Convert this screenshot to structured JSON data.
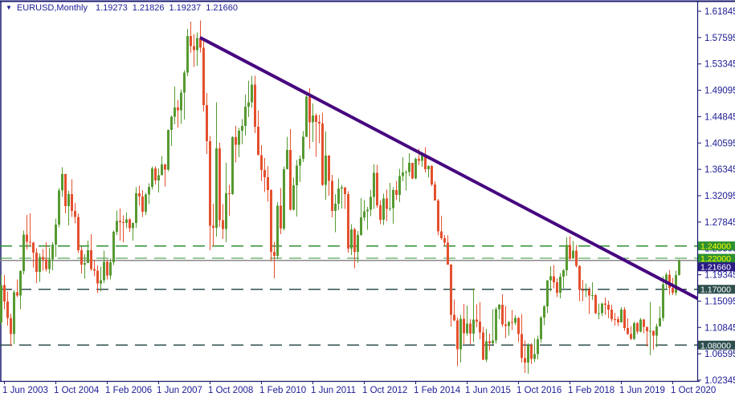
{
  "title": {
    "symbol": "EURUSD,Monthly",
    "open": "1.19273",
    "high": "1.21826",
    "low": "1.19237",
    "close": "1.21660"
  },
  "colors": {
    "background": "#FFFFFF",
    "border_navy": "#191970",
    "text_navy": "#1C1C96",
    "candle_up": "#569A31",
    "candle_down": "#E4502E",
    "trendline": "#46077F",
    "level_green": "#2E9032",
    "level_dark": "#2F4F4F",
    "bid_line": "#8C8C8C",
    "bid_box": "#2B1C86",
    "label_yellow": "#FFFF00",
    "label_white": "#FFFFFF"
  },
  "chart_data": {
    "type": "candlestick",
    "symbol": "EURUSD",
    "timeframe": "Monthly",
    "current_bar": {
      "open": 1.19273,
      "high": 1.21826,
      "low": 1.19237,
      "close": 1.2166
    },
    "y_axis_labels": [
      "1.61845",
      "1.57595",
      "1.53345",
      "1.49095",
      "1.44845",
      "1.40595",
      "1.36345",
      "1.32095",
      "1.27845",
      "1.23595",
      "1.19345",
      "1.15095",
      "1.10845",
      "1.06595",
      "1.02345"
    ],
    "ylim": [
      1.02345,
      1.61845
    ],
    "x_axis_labels": [
      {
        "text": "1 Jun 2003",
        "month": "2003-06"
      },
      {
        "text": "1 Oct 2004",
        "month": "2004-10"
      },
      {
        "text": "1 Feb 2006",
        "month": "2006-02"
      },
      {
        "text": "1 Jun 2007",
        "month": "2007-06"
      },
      {
        "text": "1 Oct 2008",
        "month": "2008-10"
      },
      {
        "text": "1 Feb 2010",
        "month": "2010-02"
      },
      {
        "text": "1 Jun 2011",
        "month": "2011-06"
      },
      {
        "text": "1 Oct 2012",
        "month": "2012-10"
      },
      {
        "text": "1 Feb 2014",
        "month": "2014-02"
      },
      {
        "text": "1 Jun 2015",
        "month": "2015-06"
      },
      {
        "text": "1 Oct 2016",
        "month": "2016-10"
      },
      {
        "text": "1 Feb 2018",
        "month": "2018-02"
      },
      {
        "text": "1 Jun 2019",
        "month": "2019-06"
      },
      {
        "text": "1 Oct 2020",
        "month": "2020-10"
      }
    ],
    "start_month": "2003-01",
    "first_open": 1.0492,
    "bars_hlc": [
      [
        1.0865,
        1.0461,
        1.0739
      ],
      [
        1.0897,
        1.0663,
        1.0779
      ],
      [
        1.1062,
        1.0502,
        1.09
      ],
      [
        1.1193,
        1.0622,
        1.1168
      ],
      [
        1.1933,
        1.1122,
        1.1766
      ],
      [
        1.1931,
        1.1378,
        1.1502
      ],
      [
        1.1662,
        1.1113,
        1.1237
      ],
      [
        1.131,
        1.0783,
        1.098
      ],
      [
        1.1685,
        1.0819,
        1.165
      ],
      [
        1.1861,
        1.1571,
        1.1599
      ],
      [
        1.2005,
        1.1377,
        1.1995
      ],
      [
        1.2649,
        1.1945,
        1.2579
      ],
      [
        1.2898,
        1.234,
        1.2463
      ],
      [
        1.2927,
        1.2385,
        1.2455
      ],
      [
        1.2466,
        1.205,
        1.229
      ],
      [
        1.2361,
        1.1802,
        1.1979
      ],
      [
        1.2278,
        1.1822,
        1.2217
      ],
      [
        1.2348,
        1.1998,
        1.2183
      ],
      [
        1.2462,
        1.1984,
        1.2029
      ],
      [
        1.237,
        1.1956,
        1.2184
      ],
      [
        1.246,
        1.2008,
        1.242
      ],
      [
        1.2843,
        1.2222,
        1.2742
      ],
      [
        1.3335,
        1.27,
        1.3291
      ],
      [
        1.3667,
        1.3193,
        1.3558
      ],
      [
        1.3568,
        1.2924,
        1.304
      ],
      [
        1.3285,
        1.2732,
        1.3238
      ],
      [
        1.3477,
        1.2868,
        1.2962
      ],
      [
        1.3093,
        1.2765,
        1.2868
      ],
      [
        1.2927,
        1.2283,
        1.2329
      ],
      [
        1.239,
        1.1954,
        1.2098
      ],
      [
        1.2264,
        1.1868,
        1.2122
      ],
      [
        1.2486,
        1.2139,
        1.2331
      ],
      [
        1.2591,
        1.1997,
        1.2024
      ],
      [
        1.2175,
        1.1912,
        1.1997
      ],
      [
        1.2085,
        1.164,
        1.179
      ],
      [
        1.2066,
        1.1665,
        1.1843
      ],
      [
        1.2323,
        1.1801,
        1.2143
      ],
      [
        1.2181,
        1.1857,
        1.1925
      ],
      [
        1.2203,
        1.1861,
        1.2136
      ],
      [
        1.2647,
        1.2093,
        1.2625
      ],
      [
        1.297,
        1.2574,
        1.2802
      ],
      [
        1.3005,
        1.2483,
        1.2784
      ],
      [
        1.289,
        1.2457,
        1.2767
      ],
      [
        1.294,
        1.2686,
        1.2831
      ],
      [
        1.2846,
        1.2625,
        1.2686
      ],
      [
        1.2774,
        1.2484,
        1.2769
      ],
      [
        1.3347,
        1.269,
        1.3247
      ],
      [
        1.3368,
        1.3047,
        1.3198
      ],
      [
        1.3297,
        1.2866,
        1.2954
      ],
      [
        1.3256,
        1.29,
        1.323
      ],
      [
        1.341,
        1.3075,
        1.3354
      ],
      [
        1.3682,
        1.3305,
        1.3651
      ],
      [
        1.3681,
        1.3391,
        1.3453
      ],
      [
        1.3651,
        1.3262,
        1.3542
      ],
      [
        1.3852,
        1.3549,
        1.3713
      ],
      [
        1.3718,
        1.336,
        1.3633
      ],
      [
        1.4278,
        1.3606,
        1.4271
      ],
      [
        1.4503,
        1.4014,
        1.4483
      ],
      [
        1.4967,
        1.4363,
        1.4633
      ],
      [
        1.4758,
        1.4309,
        1.459
      ],
      [
        1.4922,
        1.4365,
        1.487
      ],
      [
        1.5229,
        1.4437,
        1.5195
      ],
      [
        1.5903,
        1.5135,
        1.5785
      ],
      [
        1.6018,
        1.5512,
        1.5622
      ],
      [
        1.5814,
        1.5284,
        1.5554
      ],
      [
        1.5843,
        1.5303,
        1.5748
      ],
      [
        1.6038,
        1.552,
        1.5594
      ],
      [
        1.5698,
        1.4569,
        1.4671
      ],
      [
        1.4866,
        1.3882,
        1.4092
      ],
      [
        1.4175,
        1.233,
        1.2726
      ],
      [
        1.3083,
        1.2387,
        1.2694
      ],
      [
        1.4719,
        1.2553,
        1.3971
      ],
      [
        1.4064,
        1.2706,
        1.2813
      ],
      [
        1.3071,
        1.2513,
        1.2671
      ],
      [
        1.3738,
        1.2457,
        1.3249
      ],
      [
        1.3386,
        1.2886,
        1.3237
      ],
      [
        1.4169,
        1.3224,
        1.4155
      ],
      [
        1.4338,
        1.3748,
        1.4032
      ],
      [
        1.4304,
        1.3833,
        1.4256
      ],
      [
        1.4447,
        1.4045,
        1.4333
      ],
      [
        1.4842,
        1.4177,
        1.4643
      ],
      [
        1.5064,
        1.448,
        1.4715
      ],
      [
        1.5144,
        1.4625,
        1.5004
      ],
      [
        1.5141,
        1.4218,
        1.4325
      ],
      [
        1.458,
        1.3862,
        1.3862
      ],
      [
        1.4025,
        1.3443,
        1.3623
      ],
      [
        1.3818,
        1.3267,
        1.351
      ],
      [
        1.3691,
        1.3114,
        1.3297
      ],
      [
        1.3316,
        1.2151,
        1.2304
      ],
      [
        1.2467,
        1.1876,
        1.2238
      ],
      [
        1.3106,
        1.219,
        1.3049
      ],
      [
        1.3333,
        1.2587,
        1.268
      ],
      [
        1.3684,
        1.2644,
        1.3634
      ],
      [
        1.4158,
        1.3634,
        1.3947
      ],
      [
        1.4281,
        1.2969,
        1.2983
      ],
      [
        1.3499,
        1.2968,
        1.3379
      ],
      [
        1.3786,
        1.2875,
        1.3692
      ],
      [
        1.3856,
        1.3428,
        1.3806
      ],
      [
        1.4249,
        1.3752,
        1.4158
      ],
      [
        1.4882,
        1.4155,
        1.4806
      ],
      [
        1.494,
        1.3968,
        1.4393
      ],
      [
        1.4696,
        1.4073,
        1.4502
      ],
      [
        1.4536,
        1.3837,
        1.4399
      ],
      [
        1.4518,
        1.4055,
        1.4372
      ],
      [
        1.4549,
        1.3363,
        1.3387
      ],
      [
        1.4247,
        1.3146,
        1.3854
      ],
      [
        1.386,
        1.3212,
        1.3446
      ],
      [
        1.3548,
        1.2858,
        1.2961
      ],
      [
        1.3234,
        1.2624,
        1.3083
      ],
      [
        1.3487,
        1.2974,
        1.3325
      ],
      [
        1.3386,
        1.3003,
        1.3343
      ],
      [
        1.3284,
        1.2994,
        1.3238
      ],
      [
        1.3283,
        1.2288,
        1.2359
      ],
      [
        1.2748,
        1.225,
        1.2667
      ],
      [
        1.2693,
        1.2042,
        1.2304
      ],
      [
        1.2638,
        1.2132,
        1.2576
      ],
      [
        1.3172,
        1.256,
        1.286
      ],
      [
        1.3139,
        1.2803,
        1.296
      ],
      [
        1.3028,
        1.2661,
        1.2986
      ],
      [
        1.3308,
        1.288,
        1.3193
      ],
      [
        1.3712,
        1.2998,
        1.358
      ],
      [
        1.371,
        1.3018,
        1.3057
      ],
      [
        1.3134,
        1.275,
        1.2819
      ],
      [
        1.3243,
        1.274,
        1.3167
      ],
      [
        1.3306,
        1.2796,
        1.2996
      ],
      [
        1.3415,
        1.2966,
        1.301
      ],
      [
        1.3345,
        1.2755,
        1.33
      ],
      [
        1.3452,
        1.3138,
        1.3221
      ],
      [
        1.3645,
        1.3105,
        1.3527
      ],
      [
        1.3832,
        1.3441,
        1.3584
      ],
      [
        1.3616,
        1.3295,
        1.3591
      ],
      [
        1.3893,
        1.3524,
        1.3743
      ],
      [
        1.374,
        1.3476,
        1.3486
      ],
      [
        1.3824,
        1.3475,
        1.3802
      ],
      [
        1.3967,
        1.3704,
        1.377
      ],
      [
        1.3906,
        1.3672,
        1.3867
      ],
      [
        1.3993,
        1.3586,
        1.3634
      ],
      [
        1.3699,
        1.3503,
        1.3691
      ],
      [
        1.37,
        1.3366,
        1.339
      ],
      [
        1.3445,
        1.3133,
        1.3132
      ],
      [
        1.316,
        1.257,
        1.2631
      ],
      [
        1.2886,
        1.25,
        1.2524
      ],
      [
        1.2578,
        1.2394,
        1.2452
      ],
      [
        1.257,
        1.2096,
        1.2098
      ],
      [
        1.2109,
        1.1098,
        1.1291
      ],
      [
        1.1534,
        1.1184,
        1.1197
      ],
      [
        1.1243,
        1.0462,
        1.0731
      ],
      [
        1.129,
        1.0519,
        1.1224
      ],
      [
        1.1466,
        1.0819,
        1.099
      ],
      [
        1.1436,
        1.0955,
        1.1147
      ],
      [
        1.1216,
        1.0808,
        1.0984
      ],
      [
        1.1714,
        1.0848,
        1.1211
      ],
      [
        1.146,
        1.1087,
        1.1177
      ],
      [
        1.1495,
        1.0897,
        1.1006
      ],
      [
        1.1095,
        1.0557,
        1.0565
      ],
      [
        1.106,
        1.0524,
        1.0862
      ],
      [
        1.0985,
        1.0711,
        1.0832
      ],
      [
        1.1376,
        1.081,
        1.0873
      ],
      [
        1.1412,
        1.0826,
        1.138
      ],
      [
        1.1465,
        1.1217,
        1.1451
      ],
      [
        1.1616,
        1.1097,
        1.1131
      ],
      [
        1.1428,
        1.0912,
        1.1106
      ],
      [
        1.1186,
        1.0952,
        1.1174
      ],
      [
        1.1366,
        1.1046,
        1.1158
      ],
      [
        1.128,
        1.1122,
        1.1238
      ],
      [
        1.125,
        1.0851,
        1.0981
      ],
      [
        1.13,
        1.0518,
        1.0589
      ],
      [
        1.0873,
        1.0352,
        1.0517
      ],
      [
        1.0829,
        1.0341,
        1.0798
      ],
      [
        1.0828,
        1.0494,
        1.0576
      ],
      [
        1.0906,
        1.0525,
        1.0652
      ],
      [
        1.0951,
        1.057,
        1.0895
      ],
      [
        1.1268,
        1.0839,
        1.1244
      ],
      [
        1.1445,
        1.1118,
        1.1426
      ],
      [
        1.1845,
        1.1312,
        1.1842
      ],
      [
        1.207,
        1.1662,
        1.191
      ],
      [
        1.2092,
        1.1717,
        1.1814
      ],
      [
        1.188,
        1.1574,
        1.1646
      ],
      [
        1.1961,
        1.1553,
        1.1904
      ],
      [
        1.2028,
        1.1718,
        1.2005
      ],
      [
        1.2537,
        1.1916,
        1.2415
      ],
      [
        1.2556,
        1.2155,
        1.2193
      ],
      [
        1.2476,
        1.224,
        1.2324
      ],
      [
        1.2414,
        1.2055,
        1.2078
      ],
      [
        1.2085,
        1.151,
        1.1692
      ],
      [
        1.1852,
        1.1508,
        1.1684
      ],
      [
        1.1791,
        1.1575,
        1.1691
      ],
      [
        1.1733,
        1.1301,
        1.1601
      ],
      [
        1.1815,
        1.1526,
        1.1604
      ],
      [
        1.1625,
        1.1302,
        1.1316
      ],
      [
        1.1472,
        1.1216,
        1.1317
      ],
      [
        1.1485,
        1.127,
        1.1467
      ],
      [
        1.157,
        1.1289,
        1.1448
      ],
      [
        1.1514,
        1.1234,
        1.1373
      ],
      [
        1.1448,
        1.1176,
        1.1218
      ],
      [
        1.1324,
        1.1111,
        1.1215
      ],
      [
        1.1264,
        1.1107,
        1.1168
      ],
      [
        1.1412,
        1.1181,
        1.1373
      ],
      [
        1.1412,
        1.1027,
        1.1078
      ],
      [
        1.123,
        1.0963,
        1.0981
      ],
      [
        1.111,
        1.0879,
        1.0899
      ],
      [
        1.118,
        1.088,
        1.1152
      ],
      [
        1.1175,
        1.0981,
        1.1018
      ],
      [
        1.1239,
        1.1002,
        1.1212
      ],
      [
        1.1225,
        1.0992,
        1.1093
      ],
      [
        1.1096,
        1.0778,
        1.1026
      ],
      [
        1.1495,
        1.0636,
        1.1031
      ],
      [
        1.1039,
        1.0727,
        1.0955
      ],
      [
        1.1145,
        1.0766,
        1.1101
      ],
      [
        1.1422,
        1.1101,
        1.1234
      ],
      [
        1.1909,
        1.1185,
        1.1778
      ],
      [
        1.1966,
        1.1696,
        1.1935
      ],
      [
        1.2011,
        1.1612,
        1.172
      ],
      [
        1.1881,
        1.1603,
        1.1647
      ],
      [
        1.2003,
        1.1602,
        1.1927
      ],
      [
        1.21826,
        1.19237,
        1.2166
      ]
    ],
    "levels": [
      {
        "price": 1.24,
        "label": "1.24000",
        "style": "dashed",
        "line_color": "#2E9032",
        "box_color": "#2E9032",
        "text_color": "#FFFF00"
      },
      {
        "price": 1.22,
        "label": "1.22000",
        "style": "dashed",
        "line_color": "#2E9032",
        "box_color": "#2E9032",
        "text_color": "#FFFF00"
      },
      {
        "price": 1.17,
        "label": "1.17000",
        "style": "dashed",
        "line_color": "#2F4F4F",
        "box_color": "#2F4F4F",
        "text_color": "#FFFFFF"
      },
      {
        "price": 1.08,
        "label": "1.08000",
        "style": "dashed",
        "line_color": "#2F4F4F",
        "box_color": "#2F4F4F",
        "text_color": "#FFFFFF"
      }
    ],
    "bid": {
      "price": 1.2166,
      "label": "1.21660"
    },
    "trendline": {
      "from": {
        "month": "2008-07",
        "price": 1.576
      },
      "to": {
        "month": "2021-07",
        "price": 1.152
      }
    },
    "legend_position": "none",
    "grid": false
  }
}
